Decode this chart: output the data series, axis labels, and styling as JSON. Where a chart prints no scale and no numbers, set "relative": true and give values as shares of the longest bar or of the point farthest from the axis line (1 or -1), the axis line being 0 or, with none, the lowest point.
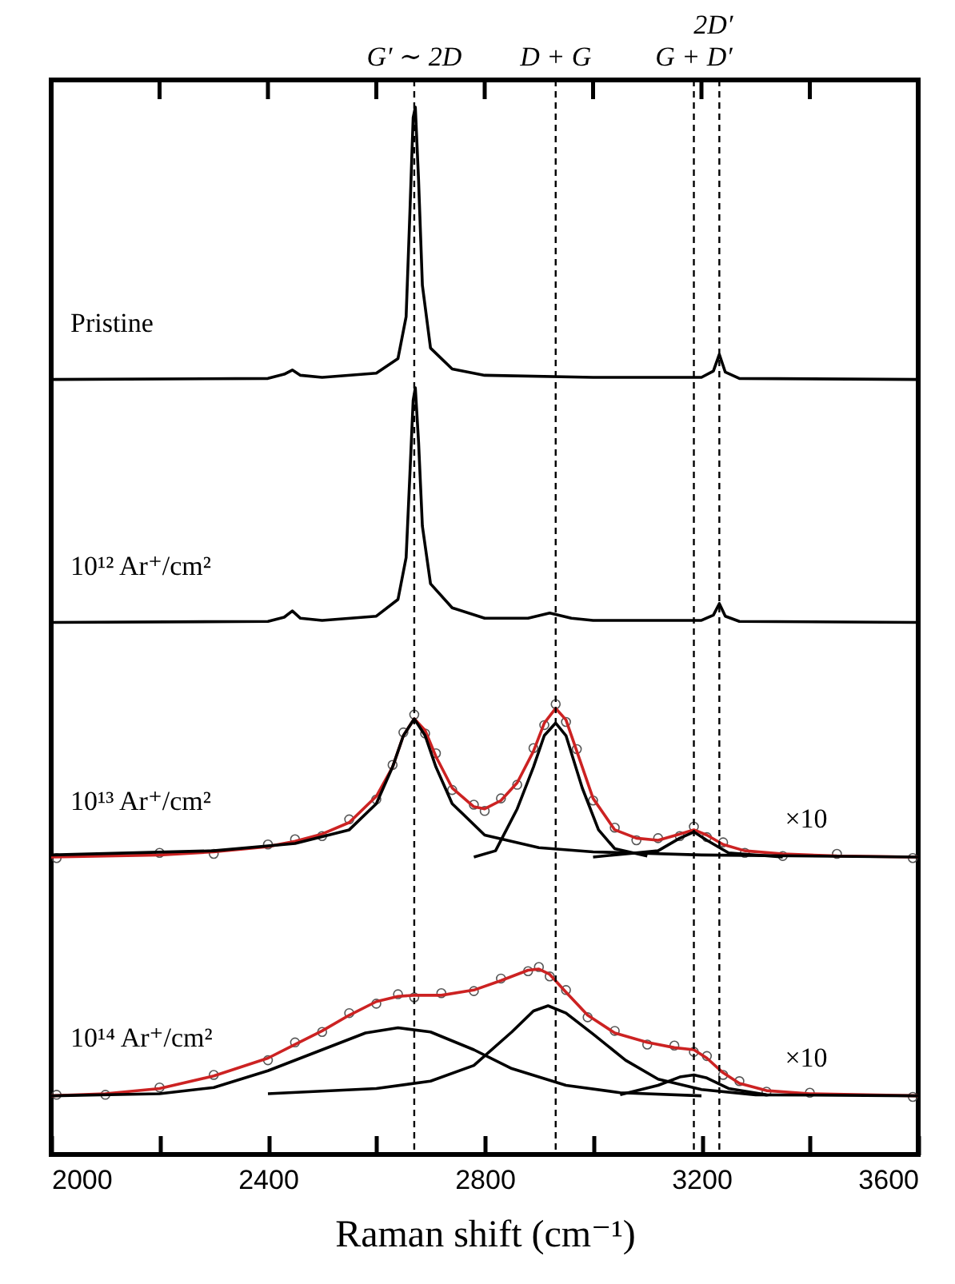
{
  "chart_data": {
    "type": "line",
    "relative": true,
    "xlabel": "Raman shift (cm⁻¹)",
    "xlim": [
      2000,
      3600
    ],
    "xticks": [
      2000,
      {
        "value": 2200,
        "label": null
      },
      2400,
      {
        "value": 2600,
        "label": null
      },
      2800,
      {
        "value": 3000,
        "label": null
      },
      3200,
      {
        "value": 3400,
        "label": null
      },
      3600
    ],
    "grid": false,
    "ref_lines": [
      {
        "axis": "x",
        "value": 2670,
        "label": "G′ ∼ 2D",
        "line_style": "dashed"
      },
      {
        "axis": "x",
        "value": 2931,
        "label": "D + G",
        "line_style": "dashed"
      },
      {
        "axis": "x",
        "value": 3186,
        "label": "G + D′",
        "line_style": "dashed"
      },
      {
        "axis": "x",
        "value": 3233,
        "label": "2D′",
        "line_style": "dashed"
      }
    ],
    "series": [
      {
        "name": "Pristine",
        "color": "#000000",
        "x": [
          2000,
          2400,
          2430,
          2445,
          2460,
          2500,
          2600,
          2640,
          2655,
          2662,
          2668,
          2672,
          2678,
          2685,
          2700,
          2740,
          2800,
          3000,
          3200,
          3222,
          3233,
          3244,
          3270,
          3600
        ],
        "values": [
          0.74,
          0.741,
          0.745,
          0.749,
          0.744,
          0.742,
          0.746,
          0.76,
          0.8,
          0.9,
          0.99,
          1.0,
          0.93,
          0.83,
          0.77,
          0.75,
          0.744,
          0.742,
          0.742,
          0.748,
          0.764,
          0.747,
          0.741,
          0.74
        ]
      },
      {
        "name": "10¹² Ar⁺/cm²",
        "color": "#000000",
        "x": [
          2000,
          2400,
          2430,
          2445,
          2460,
          2500,
          2600,
          2640,
          2655,
          2662,
          2668,
          2672,
          2678,
          2685,
          2700,
          2740,
          2800,
          2880,
          2920,
          2960,
          3000,
          3200,
          3222,
          3233,
          3244,
          3270,
          3600
        ],
        "values": [
          0.508,
          0.509,
          0.513,
          0.519,
          0.512,
          0.51,
          0.514,
          0.53,
          0.57,
          0.65,
          0.72,
          0.732,
          0.68,
          0.6,
          0.545,
          0.522,
          0.512,
          0.512,
          0.517,
          0.512,
          0.51,
          0.51,
          0.515,
          0.526,
          0.514,
          0.509,
          0.508
        ]
      },
      {
        "name": "10¹³ Ar⁺/cm²",
        "type": "scatter",
        "marker": "circle",
        "color": "#444444",
        "x": [
          2010,
          2200,
          2300,
          2400,
          2450,
          2500,
          2550,
          2600,
          2630,
          2650,
          2670,
          2690,
          2710,
          2740,
          2780,
          2800,
          2830,
          2860,
          2890,
          2910,
          2931,
          2950,
          2970,
          3000,
          3040,
          3080,
          3120,
          3160,
          3186,
          3210,
          3240,
          3280,
          3350,
          3450,
          3590
        ],
        "values": [
          0.283,
          0.288,
          0.287,
          0.296,
          0.301,
          0.304,
          0.32,
          0.339,
          0.372,
          0.403,
          0.42,
          0.402,
          0.383,
          0.348,
          0.334,
          0.328,
          0.34,
          0.353,
          0.388,
          0.41,
          0.43,
          0.413,
          0.387,
          0.338,
          0.312,
          0.3,
          0.302,
          0.304,
          0.313,
          0.303,
          0.298,
          0.288,
          0.285,
          0.287,
          0.283
        ]
      },
      {
        "color": "#cc2222",
        "x": [
          2000,
          2200,
          2300,
          2400,
          2450,
          2500,
          2550,
          2600,
          2630,
          2650,
          2670,
          2690,
          2710,
          2740,
          2780,
          2800,
          2830,
          2860,
          2890,
          2910,
          2931,
          2950,
          2970,
          3000,
          3040,
          3080,
          3120,
          3160,
          3186,
          3210,
          3240,
          3280,
          3350,
          3450,
          3600
        ],
        "values": [
          0.284,
          0.286,
          0.289,
          0.294,
          0.299,
          0.306,
          0.317,
          0.342,
          0.37,
          0.4,
          0.416,
          0.405,
          0.38,
          0.35,
          0.332,
          0.33,
          0.338,
          0.355,
          0.385,
          0.412,
          0.426,
          0.415,
          0.385,
          0.34,
          0.31,
          0.302,
          0.3,
          0.306,
          0.31,
          0.305,
          0.296,
          0.29,
          0.287,
          0.285,
          0.284
        ]
      },
      {
        "color": "#000000",
        "x": [
          2000,
          2300,
          2450,
          2550,
          2600,
          2630,
          2650,
          2670,
          2690,
          2710,
          2740,
          2800,
          2900,
          3000,
          3200,
          3600
        ],
        "values": [
          0.286,
          0.29,
          0.297,
          0.31,
          0.335,
          0.37,
          0.4,
          0.416,
          0.4,
          0.37,
          0.335,
          0.305,
          0.293,
          0.289,
          0.286,
          0.284
        ]
      },
      {
        "color": "#000000",
        "x": [
          2780,
          2820,
          2860,
          2890,
          2910,
          2931,
          2950,
          2980,
          3010,
          3040,
          3100
        ],
        "values": [
          0.284,
          0.29,
          0.33,
          0.37,
          0.4,
          0.412,
          0.4,
          0.35,
          0.31,
          0.292,
          0.285
        ]
      },
      {
        "color": "#000000",
        "x": [
          3000,
          3120,
          3160,
          3186,
          3210,
          3250,
          3350
        ],
        "values": [
          0.284,
          0.29,
          0.302,
          0.308,
          0.3,
          0.288,
          0.284
        ]
      },
      {
        "name": "10¹⁴ Ar⁺/cm²",
        "type": "scatter",
        "marker": "circle",
        "color": "#444444",
        "x": [
          2010,
          2100,
          2200,
          2300,
          2400,
          2450,
          2500,
          2550,
          2600,
          2640,
          2670,
          2720,
          2780,
          2830,
          2880,
          2900,
          2920,
          2950,
          2990,
          3040,
          3100,
          3150,
          3186,
          3210,
          3240,
          3270,
          3320,
          3400,
          3590
        ],
        "values": [
          0.057,
          0.057,
          0.064,
          0.076,
          0.09,
          0.107,
          0.117,
          0.135,
          0.144,
          0.153,
          0.15,
          0.154,
          0.156,
          0.168,
          0.175,
          0.179,
          0.17,
          0.157,
          0.131,
          0.118,
          0.105,
          0.104,
          0.098,
          0.094,
          0.076,
          0.07,
          0.06,
          0.059,
          0.055
        ]
      },
      {
        "color": "#cc2222",
        "x": [
          2000,
          2100,
          2200,
          2300,
          2400,
          2450,
          2500,
          2550,
          2600,
          2640,
          2670,
          2720,
          2780,
          2830,
          2880,
          2900,
          2920,
          2950,
          2990,
          3040,
          3100,
          3150,
          3186,
          3210,
          3240,
          3270,
          3320,
          3400,
          3600
        ],
        "values": [
          0.056,
          0.058,
          0.063,
          0.075,
          0.092,
          0.105,
          0.118,
          0.133,
          0.146,
          0.151,
          0.152,
          0.152,
          0.157,
          0.166,
          0.176,
          0.177,
          0.172,
          0.155,
          0.133,
          0.116,
          0.107,
          0.102,
          0.1,
          0.092,
          0.078,
          0.068,
          0.061,
          0.058,
          0.056
        ]
      },
      {
        "color": "#000000",
        "x": [
          2000,
          2200,
          2300,
          2400,
          2500,
          2580,
          2640,
          2700,
          2780,
          2850,
          2950,
          3050,
          3200
        ],
        "values": [
          0.056,
          0.058,
          0.064,
          0.08,
          0.1,
          0.116,
          0.121,
          0.117,
          0.1,
          0.082,
          0.066,
          0.059,
          0.056
        ]
      },
      {
        "color": "#000000",
        "x": [
          2400,
          2600,
          2700,
          2780,
          2850,
          2890,
          2917,
          2950,
          3000,
          3060,
          3120,
          3200,
          3300,
          3600
        ],
        "values": [
          0.058,
          0.063,
          0.07,
          0.085,
          0.117,
          0.137,
          0.142,
          0.135,
          0.115,
          0.09,
          0.072,
          0.062,
          0.057,
          0.056
        ]
      },
      {
        "color": "#000000",
        "x": [
          3050,
          3120,
          3160,
          3186,
          3210,
          3250,
          3320
        ],
        "values": [
          0.057,
          0.066,
          0.074,
          0.076,
          0.073,
          0.063,
          0.057
        ]
      }
    ],
    "annotations": [
      "×10",
      "×10"
    ]
  }
}
